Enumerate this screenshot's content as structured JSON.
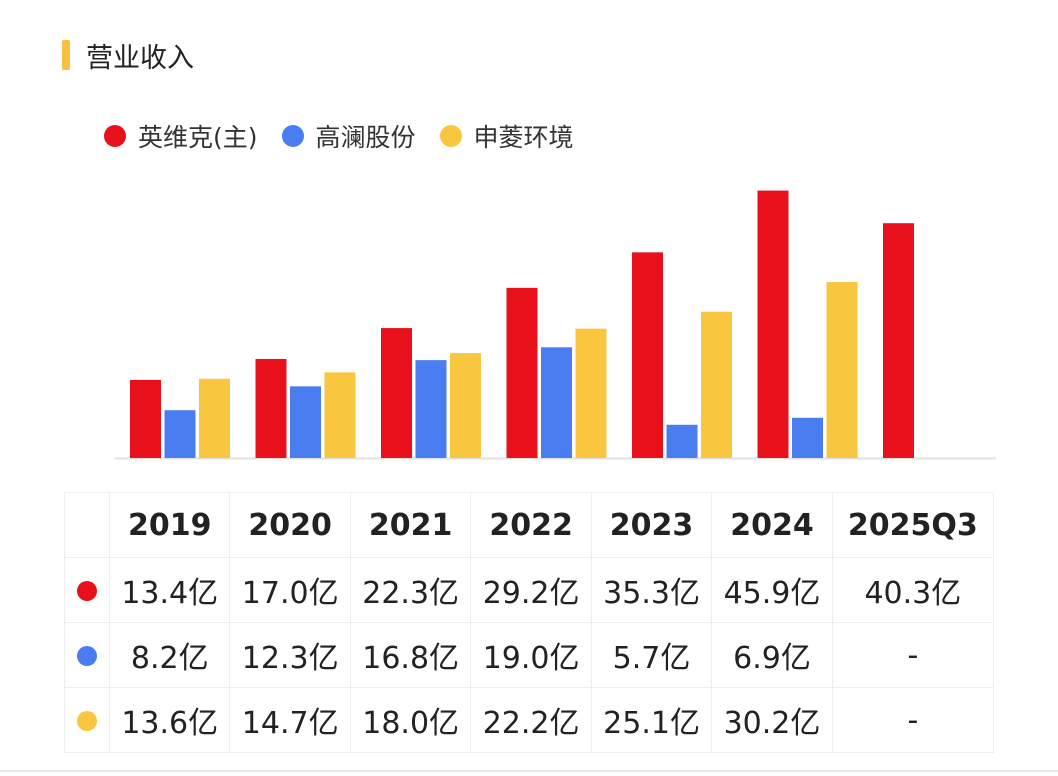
{
  "header": {
    "title": "营业收入"
  },
  "colors": {
    "series1": "#e8101a",
    "series2": "#4a7ef0",
    "series3": "#f9c640",
    "accent": "#f7c13e"
  },
  "chart_data": {
    "type": "bar",
    "title": "营业收入",
    "categories": [
      "2019",
      "2020",
      "2021",
      "2022",
      "2023",
      "2024",
      "2025Q3"
    ],
    "series": [
      {
        "name": "英维克(主)",
        "values": [
          13.4,
          17.0,
          22.3,
          29.2,
          35.3,
          45.9,
          40.3
        ]
      },
      {
        "name": "高澜股份",
        "values": [
          8.2,
          12.3,
          16.8,
          19.0,
          5.7,
          6.9,
          null
        ]
      },
      {
        "name": "申菱环境",
        "values": [
          13.6,
          14.7,
          18.0,
          22.2,
          25.1,
          30.2,
          null
        ]
      }
    ],
    "unit": "亿",
    "ylim": [
      0,
      46
    ]
  },
  "table": {
    "headers": [
      "2019",
      "2020",
      "2021",
      "2022",
      "2023",
      "2024",
      "2025Q3"
    ],
    "rows": [
      [
        "13.4亿",
        "17.0亿",
        "22.3亿",
        "29.2亿",
        "35.3亿",
        "45.9亿",
        "40.3亿"
      ],
      [
        "8.2亿",
        "12.3亿",
        "16.8亿",
        "19.0亿",
        "5.7亿",
        "6.9亿",
        "-"
      ],
      [
        "13.6亿",
        "14.7亿",
        "18.0亿",
        "22.2亿",
        "25.1亿",
        "30.2亿",
        "-"
      ]
    ]
  }
}
